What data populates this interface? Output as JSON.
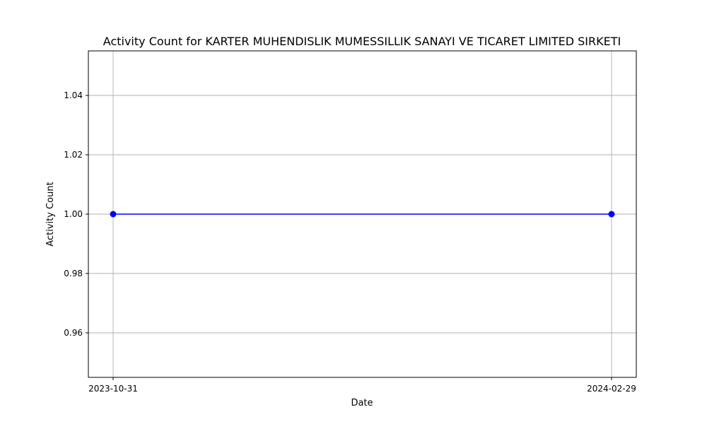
{
  "chart_data": {
    "type": "line",
    "title": "Activity Count for KARTER MUHENDISLIK MUMESSILLIK SANAYI VE TICARET LIMITED SIRKETI",
    "xlabel": "Date",
    "ylabel": "Activity Count",
    "x": [
      "2023-10-31",
      "2024-02-29"
    ],
    "x_tick_labels": [
      "2023-10-31",
      "2024-02-29"
    ],
    "series": [
      {
        "values": [
          1.0,
          1.0
        ],
        "color": "#0000ff",
        "marker": "circle"
      }
    ],
    "ylim": [
      0.945,
      1.055
    ],
    "y_ticks": [
      0.96,
      0.98,
      1.0,
      1.02,
      1.04
    ],
    "y_tick_labels": [
      "0.96",
      "0.98",
      "1.00",
      "1.02",
      "1.04"
    ],
    "grid": true
  }
}
